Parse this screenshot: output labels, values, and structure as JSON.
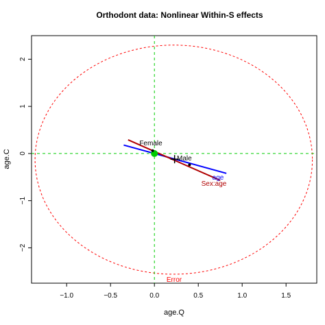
{
  "chart_data": {
    "type": "scatter",
    "title": "Orthodont data: Nonlinear Within-S effects",
    "xlabel": "age.Q",
    "ylabel": "age.C",
    "xlim": [
      -1.4,
      1.85
    ],
    "ylim": [
      -2.75,
      2.5
    ],
    "x_ticks": [
      -1.0,
      -0.5,
      0.0,
      0.5,
      1.0,
      1.5
    ],
    "x_tick_labels": [
      "−1.0",
      "−0.5",
      "0.0",
      "0.5",
      "1.0",
      "1.5"
    ],
    "y_ticks": [
      -2,
      -1,
      0,
      1,
      2
    ],
    "y_tick_labels": [
      "−2",
      "−1",
      "0",
      "1",
      "2"
    ],
    "grid": false,
    "colors": {
      "error": "#ff0000",
      "reference": "#00cc00",
      "age": "#0000ff",
      "sexage": "#b00000",
      "points": "#000000"
    },
    "error_ellipse": {
      "center": [
        0.22,
        -0.13
      ],
      "rx": 1.58,
      "ry": 2.43
    },
    "reference_lines": {
      "h": 0,
      "v": 0
    },
    "origin_point": [
      0.0,
      0.0
    ],
    "center_marker": [
      0.23,
      -0.12
    ],
    "points": [
      {
        "label": "Female",
        "x": -0.02,
        "y": 0.06
      },
      {
        "label": "Male",
        "x": 0.4,
        "y": -0.24
      }
    ],
    "effects": [
      {
        "name": "age",
        "from": [
          -0.35,
          0.18
        ],
        "to": [
          0.82,
          -0.42
        ]
      },
      {
        "name": "Sex:age",
        "from": [
          -0.3,
          0.29
        ],
        "to": [
          0.75,
          -0.57
        ]
      }
    ],
    "annotations": {
      "error_label": "Error",
      "age_label": "age",
      "sexage_label": "Sex:age",
      "female_label": "Female",
      "male_label": "Male"
    }
  }
}
